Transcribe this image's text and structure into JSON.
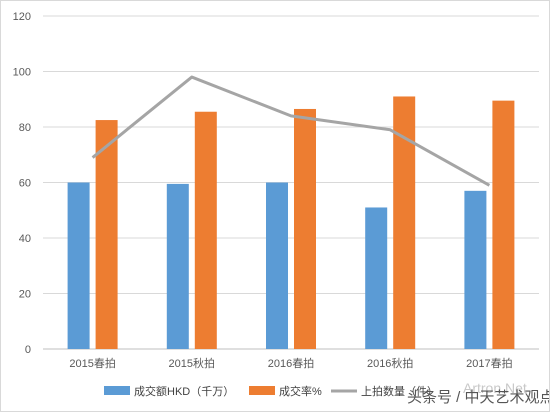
{
  "chart_data": {
    "type": "bar",
    "categories": [
      "2015春拍",
      "2015秋拍",
      "2016春拍",
      "2016秋拍",
      "2017春拍"
    ],
    "series": [
      {
        "name": "成交额HKD（千万）",
        "type": "bar",
        "values": [
          60,
          59.5,
          60,
          51,
          57
        ],
        "color": "#5b9bd5"
      },
      {
        "name": "成交率%",
        "type": "bar",
        "values": [
          82.5,
          85.5,
          86.5,
          91,
          89.5
        ],
        "color": "#ed7d31"
      },
      {
        "name": "上拍数量（件）",
        "type": "line",
        "values": [
          69,
          98,
          84,
          79,
          59
        ],
        "color": "#a5a5a5"
      }
    ],
    "ylim": [
      0,
      120
    ],
    "yticks": [
      "0",
      "20",
      "40",
      "60",
      "80",
      "100",
      "120"
    ],
    "grid": true,
    "legend": "bottom"
  },
  "watermark": {
    "text": "头条号 / 中天艺术观点",
    "faint": "Artron.Net"
  }
}
